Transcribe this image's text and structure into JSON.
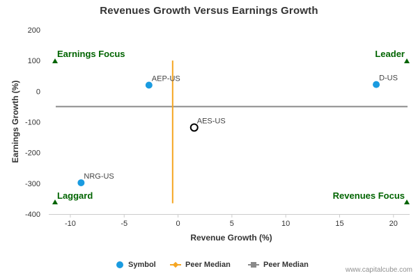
{
  "chart_data": {
    "type": "scatter",
    "title": "Revenues Growth Versus Earnings Growth",
    "xlabel": "Revenue Growth (%)",
    "ylabel": "Earnings Growth (%)",
    "xlim": [
      -12,
      21.5
    ],
    "ylim": [
      -400,
      200
    ],
    "x_ticks": [
      -10,
      -5,
      0,
      5,
      10,
      15,
      20
    ],
    "y_ticks": [
      200,
      100,
      0,
      -100,
      -200,
      -300,
      -400
    ],
    "grid": false,
    "points": [
      {
        "label": "AEP-US",
        "x": -2.7,
        "y": 20,
        "style": "symbol"
      },
      {
        "label": "D-US",
        "x": 18.4,
        "y": 22,
        "style": "symbol"
      },
      {
        "label": "AES-US",
        "x": 1.5,
        "y": -118,
        "style": "highlight"
      },
      {
        "label": "NRG-US",
        "x": -9.0,
        "y": -298,
        "style": "symbol"
      }
    ],
    "peer_median_x": -0.5,
    "peer_median_y": -50,
    "quadrant_labels": [
      {
        "text": "Earnings Focus",
        "position": "top-left"
      },
      {
        "text": "Leader",
        "position": "top-right"
      },
      {
        "text": "Laggard",
        "position": "bottom-left"
      },
      {
        "text": "Revenues Focus",
        "position": "bottom-right"
      }
    ],
    "legend": {
      "placement": "bottom",
      "items": [
        {
          "label": "Symbol",
          "color": "#1a9be0",
          "marker": "circle"
        },
        {
          "label": "Peer Median",
          "color": "#f5a623",
          "marker": "line-diamond"
        },
        {
          "label": "Peer Median",
          "color": "#8a8a8a",
          "marker": "line-square"
        }
      ]
    },
    "colors": {
      "symbol": "#1a9be0",
      "highlight_stroke": "#000000",
      "peer_x": "#f5a623",
      "peer_y": "#8a8a8a",
      "quadrant": "#006400",
      "axis_text": "#333333"
    }
  },
  "watermark": "www.capitalcube.com"
}
